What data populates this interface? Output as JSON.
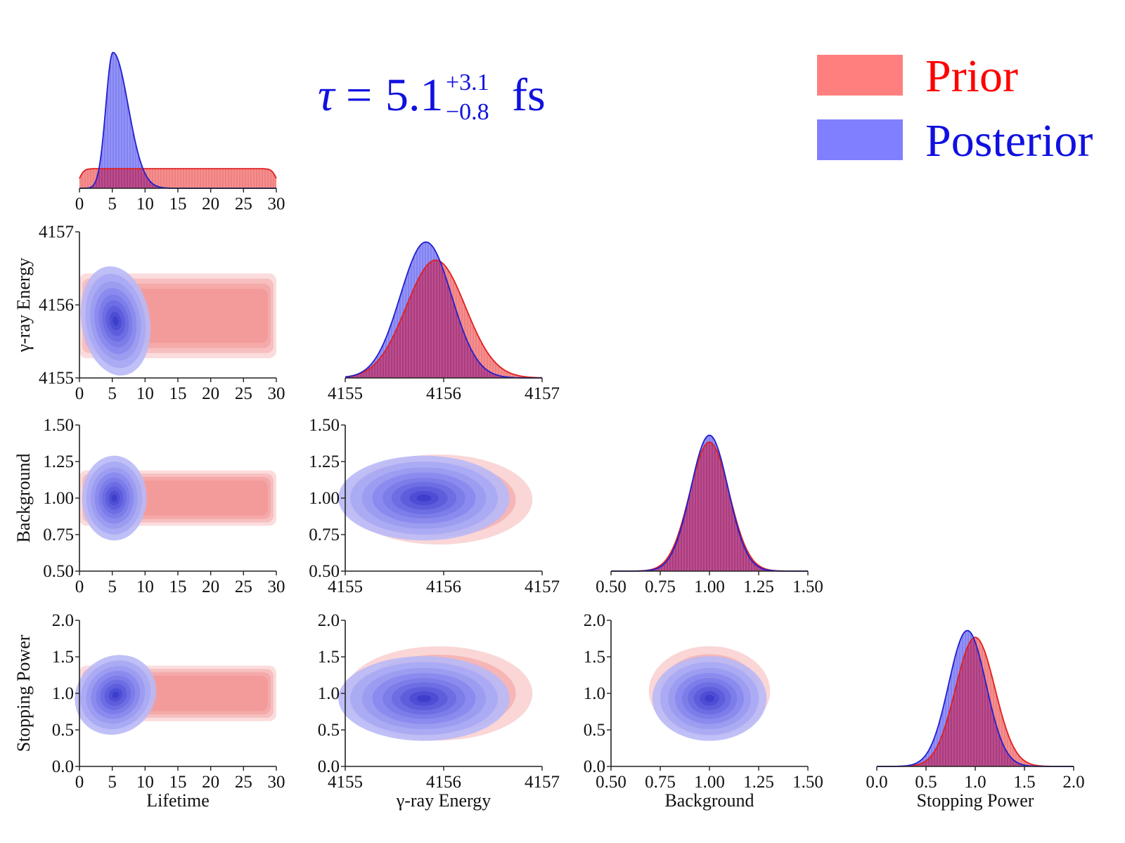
{
  "annotation": {
    "symbol": "τ",
    "equals": "=",
    "value": "5.1",
    "upper": "+3.1",
    "lower": "−0.8",
    "unit": "fs"
  },
  "legend": [
    {
      "label": "Prior",
      "color": "#ff7f7f",
      "text_color": "#ff0000"
    },
    {
      "label": "Posterior",
      "color": "#7f7fff",
      "text_color": "#1010e0"
    }
  ],
  "colors": {
    "prior": "#f08080",
    "posterior": "#7b7bf5",
    "prior_line": "#e02020",
    "posterior_line": "#2020d0"
  },
  "chart_data": {
    "type": "corner",
    "parameters": [
      {
        "key": "lifetime",
        "label": "Lifetime",
        "lim": [
          0,
          30
        ],
        "ticks": [
          0,
          5,
          10,
          15,
          20,
          25,
          30
        ],
        "tick_labels": [
          "0",
          "5",
          "10",
          "15",
          "20",
          "25",
          "30"
        ]
      },
      {
        "key": "energy",
        "label": "γ-ray Energy",
        "lim": [
          4155,
          4157
        ],
        "ticks": [
          4155,
          4156,
          4157
        ],
        "tick_labels": [
          "4155",
          "4156",
          "4157"
        ]
      },
      {
        "key": "background",
        "label": "Background",
        "lim": [
          0.5,
          1.5
        ],
        "ticks": [
          0.5,
          0.75,
          1.0,
          1.25,
          1.5
        ],
        "tick_labels": [
          "0.50",
          "0.75",
          "1.00",
          "1.25",
          "1.50"
        ]
      },
      {
        "key": "stopping",
        "label": "Stopping Power",
        "lim": [
          0.0,
          2.0
        ],
        "ticks": [
          0.0,
          0.5,
          1.0,
          1.5,
          2.0
        ],
        "tick_labels": [
          "0.0",
          "0.5",
          "1.0",
          "1.5",
          "2.0"
        ]
      }
    ],
    "marginals": {
      "lifetime": {
        "prior": {
          "dist": "uniform",
          "range": [
            0,
            30
          ]
        },
        "posterior": {
          "dist": "skewnormal",
          "mode": 5.1,
          "upper_sigma": 3.1,
          "lower_sigma": 0.8
        }
      },
      "energy": {
        "prior": {
          "dist": "normal",
          "mean": 4155.92,
          "sd": 0.3
        },
        "posterior": {
          "dist": "normal",
          "mean": 4155.82,
          "sd": 0.26
        }
      },
      "background": {
        "prior": {
          "dist": "normal",
          "mean": 1.0,
          "sd": 0.1
        },
        "posterior": {
          "dist": "normal",
          "mean": 1.0,
          "sd": 0.095
        }
      },
      "stopping": {
        "prior": {
          "dist": "normal",
          "mean": 1.0,
          "sd": 0.2
        },
        "posterior": {
          "dist": "normal",
          "mean": 0.92,
          "sd": 0.19
        }
      }
    },
    "pairs": [
      {
        "x": "lifetime",
        "y": "energy",
        "prior": {
          "x_range": [
            0,
            30
          ],
          "y_range": [
            4155.27,
            4156.43
          ]
        },
        "posterior": {
          "center": [
            5.5,
            4155.78
          ],
          "sx": 1.8,
          "sy": 0.26,
          "rho": 0.1
        }
      },
      {
        "x": "lifetime",
        "y": "background",
        "prior": {
          "x_range": [
            0,
            30
          ],
          "y_range": [
            0.81,
            1.19
          ]
        },
        "posterior": {
          "center": [
            5.3,
            1.0
          ],
          "sx": 1.7,
          "sy": 0.1,
          "rho": 0.0
        }
      },
      {
        "x": "lifetime",
        "y": "stopping",
        "prior": {
          "x_range": [
            0,
            30
          ],
          "y_range": [
            0.62,
            1.38
          ]
        },
        "posterior": {
          "center": [
            5.5,
            0.98
          ],
          "sx": 2.0,
          "sy": 0.2,
          "rho": -0.72
        }
      },
      {
        "x": "energy",
        "y": "background",
        "prior": {
          "center": [
            4155.95,
            0.99
          ],
          "sx": 0.34,
          "sy": 0.11,
          "rho": 0.0
        },
        "posterior": {
          "center": [
            4155.8,
            1.0
          ],
          "sx": 0.3,
          "sy": 0.1,
          "rho": 0.0
        }
      },
      {
        "x": "energy",
        "y": "stopping",
        "prior": {
          "center": [
            4155.95,
            1.0
          ],
          "sx": 0.34,
          "sy": 0.23,
          "rho": 0.0
        },
        "posterior": {
          "center": [
            4155.8,
            0.93
          ],
          "sx": 0.3,
          "sy": 0.2,
          "rho": 0.0
        }
      },
      {
        "x": "background",
        "y": "stopping",
        "prior": {
          "center": [
            1.0,
            1.03
          ],
          "sx": 0.11,
          "sy": 0.22,
          "rho": 0.0
        },
        "posterior": {
          "center": [
            1.0,
            0.93
          ],
          "sx": 0.1,
          "sy": 0.2,
          "rho": 0.0
        }
      }
    ]
  }
}
